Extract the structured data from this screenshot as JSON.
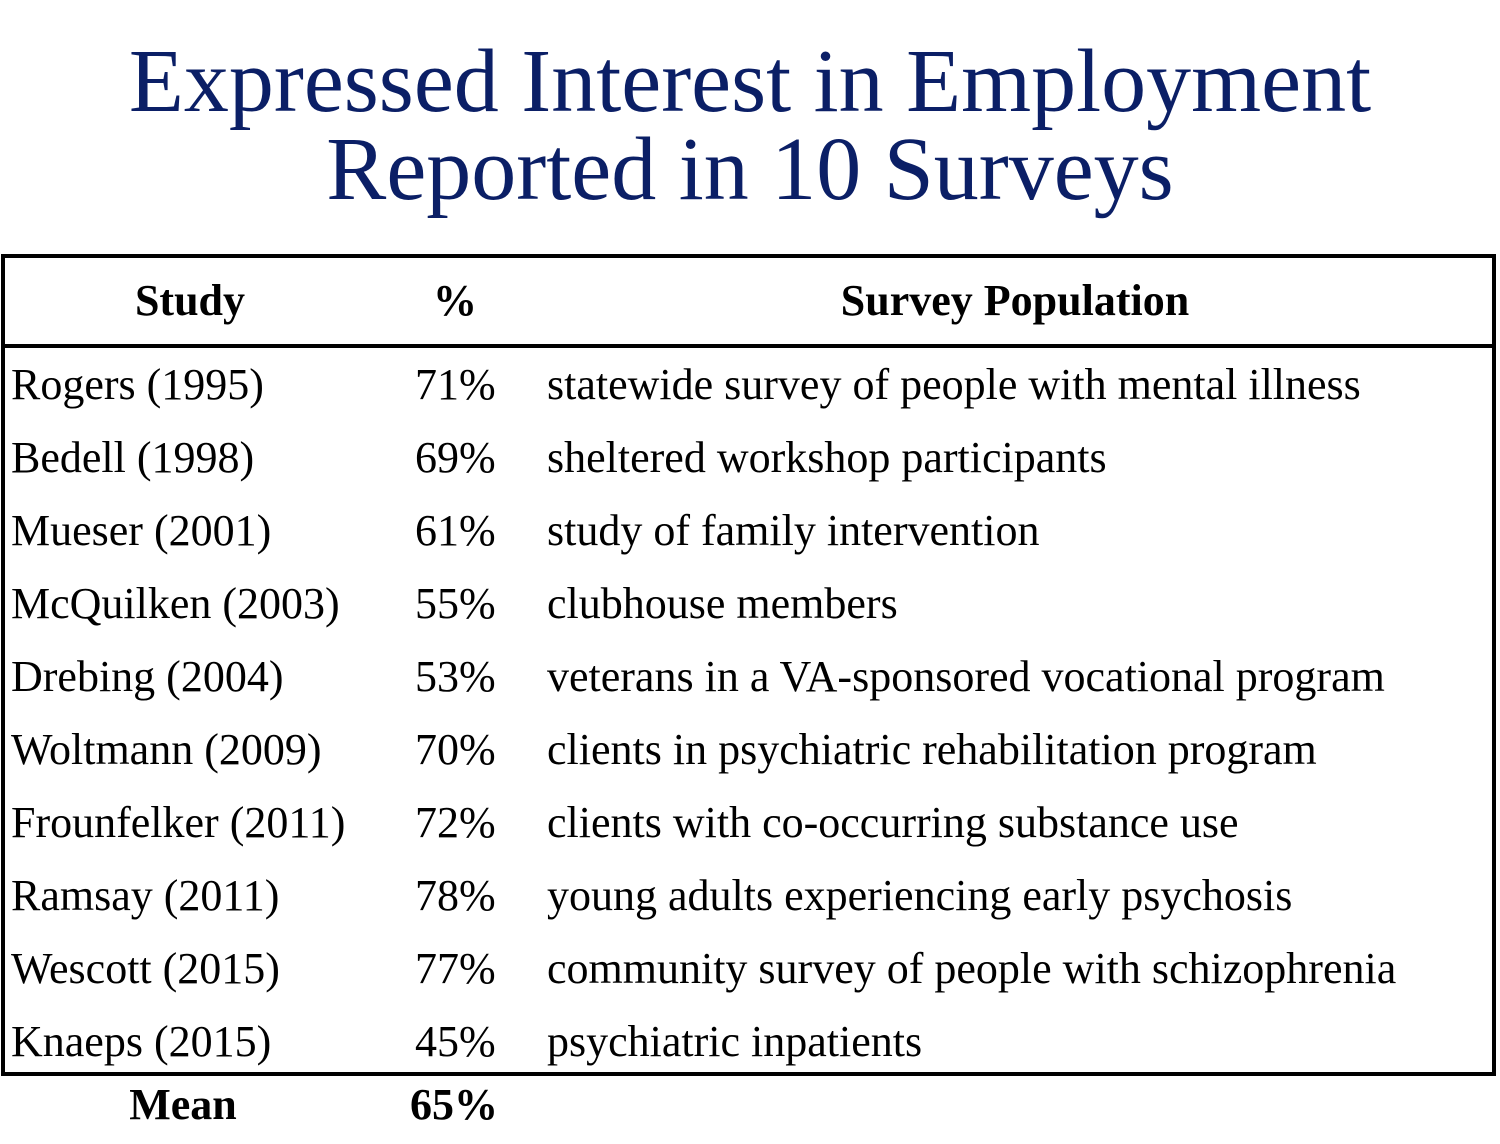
{
  "title": {
    "line1": "Expressed Interest in Employment",
    "line2": "Reported in 10 Surveys"
  },
  "colors": {
    "title": "#0b1f66",
    "text": "#000000",
    "border": "#000000"
  },
  "table": {
    "headers": {
      "study": "Study",
      "percent": "%",
      "population": "Survey Population"
    },
    "rows": [
      {
        "study": "Rogers (1995)",
        "percent": "71%",
        "population": "statewide survey of people with mental illness"
      },
      {
        "study": "Bedell (1998)",
        "percent": "69%",
        "population": "sheltered workshop participants"
      },
      {
        "study": "Mueser (2001)",
        "percent": "61%",
        "population": "study of family intervention"
      },
      {
        "study": "McQuilken (2003)",
        "percent": "55%",
        "population": "clubhouse members"
      },
      {
        "study": "Drebing (2004)",
        "percent": "53%",
        "population": "veterans in a VA-sponsored vocational program"
      },
      {
        "study": "Woltmann (2009)",
        "percent": "70%",
        "population": "clients in psychiatric rehabilitation program"
      },
      {
        "study": "Frounfelker (2011)",
        "percent": "72%",
        "population": "clients with co-occurring substance use"
      },
      {
        "study": "Ramsay (2011)",
        "percent": "78%",
        "population": "young adults experiencing early psychosis"
      },
      {
        "study": "Wescott (2015)",
        "percent": "77%",
        "population": "community survey of people with schizophrenia"
      },
      {
        "study": "Knaeps (2015)",
        "percent": "45%",
        "population": "psychiatric inpatients"
      }
    ],
    "mean": {
      "label": "Mean",
      "value": "65%"
    }
  }
}
